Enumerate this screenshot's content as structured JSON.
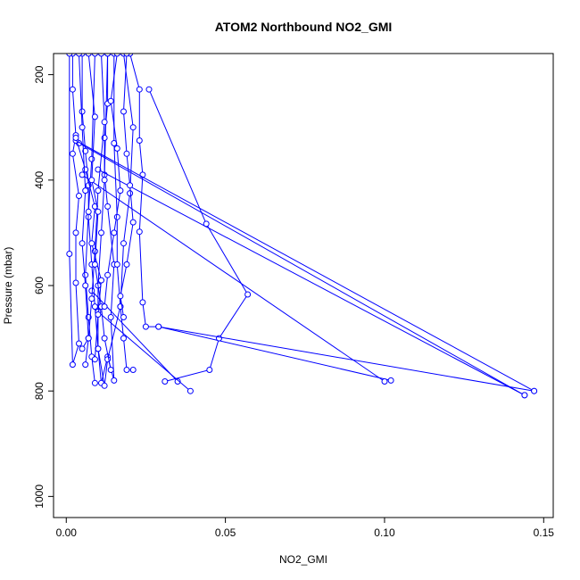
{
  "chart_data": {
    "type": "line",
    "title": "ATOM2 Northbound NO2_GMI",
    "xlabel": "NO2_GMI",
    "ylabel": "Pressure (mbar)",
    "xlim": [
      -0.004,
      0.153
    ],
    "ylim": [
      1040,
      160
    ],
    "y_inverted": true,
    "xticks": [
      0.0,
      0.05,
      0.1,
      0.15
    ],
    "xtick_labels": [
      "0.00",
      "0.05",
      "0.10",
      "0.15"
    ],
    "yticks": [
      200,
      400,
      600,
      800,
      1000
    ],
    "ytick_labels": [
      "200",
      "400",
      "600",
      "800",
      "1000"
    ],
    "grid": false,
    "legend": "none",
    "marker": "open-circle",
    "color": "#0000ff",
    "series": [
      {
        "points": [
          [
            0.002,
            160
          ],
          [
            0.002,
            228
          ],
          [
            0.003,
            315
          ],
          [
            0.002,
            350
          ],
          [
            0.004,
            430
          ],
          [
            0.003,
            500
          ],
          [
            0.003,
            595
          ],
          [
            0.004,
            710
          ],
          [
            0.002,
            750
          ],
          [
            0.001,
            540
          ],
          [
            0.001,
            160
          ]
        ]
      },
      {
        "points": [
          [
            0.005,
            160
          ],
          [
            0.005,
            270
          ],
          [
            0.006,
            345
          ],
          [
            0.007,
            410
          ],
          [
            0.007,
            470
          ],
          [
            0.008,
            560
          ],
          [
            0.009,
            640
          ],
          [
            0.01,
            720
          ],
          [
            0.011,
            785
          ],
          [
            0.013,
            735
          ],
          [
            0.015,
            780
          ],
          [
            0.014,
            660
          ],
          [
            0.015,
            560
          ],
          [
            0.013,
            450
          ],
          [
            0.012,
            390
          ],
          [
            0.013,
            160
          ]
        ]
      },
      {
        "points": [
          [
            0.013,
            160
          ],
          [
            0.013,
            255
          ],
          [
            0.012,
            320
          ],
          [
            0.012,
            400
          ],
          [
            0.011,
            500
          ],
          [
            0.01,
            600
          ],
          [
            0.01,
            720
          ],
          [
            0.012,
            790
          ],
          [
            0.013,
            740
          ],
          [
            0.017,
            640
          ],
          [
            0.018,
            520
          ],
          [
            0.02,
            425
          ],
          [
            0.021,
            300
          ],
          [
            0.018,
            160
          ]
        ]
      },
      {
        "points": [
          [
            0.02,
            160
          ],
          [
            0.023,
            228
          ],
          [
            0.023,
            325
          ],
          [
            0.024,
            390
          ],
          [
            0.023,
            498
          ],
          [
            0.024,
            632
          ],
          [
            0.025,
            678
          ],
          [
            0.029,
            678
          ],
          [
            0.102,
            780
          ]
        ]
      },
      {
        "points": [
          [
            0.026,
            228
          ],
          [
            0.044,
            483
          ],
          [
            0.057,
            617
          ],
          [
            0.048,
            700
          ],
          [
            0.045,
            760
          ],
          [
            0.031,
            782
          ]
        ]
      },
      {
        "points": [
          [
            0.004,
            330
          ],
          [
            0.144,
            808
          ]
        ]
      },
      {
        "points": [
          [
            0.003,
            325
          ],
          [
            0.147,
            800
          ]
        ]
      },
      {
        "points": [
          [
            0.01,
            380
          ],
          [
            0.144,
            808
          ]
        ]
      },
      {
        "points": [
          [
            0.005,
            390
          ],
          [
            0.1,
            782
          ]
        ]
      },
      {
        "points": [
          [
            0.008,
            610
          ],
          [
            0.035,
            782
          ]
        ]
      },
      {
        "points": [
          [
            0.029,
            678
          ],
          [
            0.147,
            800
          ]
        ]
      },
      {
        "points": [
          [
            0.01,
            650
          ],
          [
            0.039,
            800
          ]
        ]
      },
      {
        "points": [
          [
            0.009,
            160
          ],
          [
            0.008,
            360
          ],
          [
            0.007,
            460
          ],
          [
            0.006,
            580
          ],
          [
            0.007,
            660
          ],
          [
            0.008,
            735
          ],
          [
            0.009,
            785
          ]
        ]
      },
      {
        "points": [
          [
            0.011,
            160
          ],
          [
            0.012,
            290
          ],
          [
            0.01,
            420
          ],
          [
            0.009,
            535
          ],
          [
            0.008,
            625
          ],
          [
            0.007,
            700
          ],
          [
            0.006,
            750
          ]
        ]
      },
      {
        "points": [
          [
            0.015,
            160
          ],
          [
            0.015,
            330
          ],
          [
            0.016,
            470
          ],
          [
            0.016,
            560
          ],
          [
            0.017,
            640
          ],
          [
            0.018,
            700
          ],
          [
            0.019,
            760
          ],
          [
            0.021,
            760
          ]
        ]
      },
      {
        "points": [
          [
            0.003,
            320
          ],
          [
            0.006,
            380
          ],
          [
            0.009,
            450
          ],
          [
            0.008,
            520
          ],
          [
            0.011,
            590
          ],
          [
            0.01,
            655
          ],
          [
            0.009,
            740
          ]
        ]
      },
      {
        "points": [
          [
            0.019,
            160
          ],
          [
            0.018,
            270
          ],
          [
            0.019,
            350
          ],
          [
            0.02,
            410
          ],
          [
            0.021,
            480
          ],
          [
            0.019,
            560
          ],
          [
            0.017,
            620
          ],
          [
            0.018,
            660
          ]
        ]
      },
      {
        "points": [
          [
            0.004,
            160
          ],
          [
            0.005,
            300
          ],
          [
            0.006,
            420
          ],
          [
            0.005,
            520
          ],
          [
            0.006,
            600
          ],
          [
            0.007,
            700
          ],
          [
            0.005,
            720
          ]
        ]
      },
      {
        "points": [
          [
            0.007,
            160
          ],
          [
            0.009,
            280
          ],
          [
            0.008,
            400
          ],
          [
            0.01,
            460
          ],
          [
            0.009,
            560
          ],
          [
            0.011,
            640
          ],
          [
            0.012,
            700
          ],
          [
            0.014,
            760
          ]
        ]
      },
      {
        "points": [
          [
            0.016,
            160
          ],
          [
            0.014,
            250
          ],
          [
            0.016,
            340
          ],
          [
            0.017,
            420
          ],
          [
            0.015,
            500
          ],
          [
            0.013,
            580
          ],
          [
            0.012,
            640
          ]
        ]
      }
    ]
  }
}
